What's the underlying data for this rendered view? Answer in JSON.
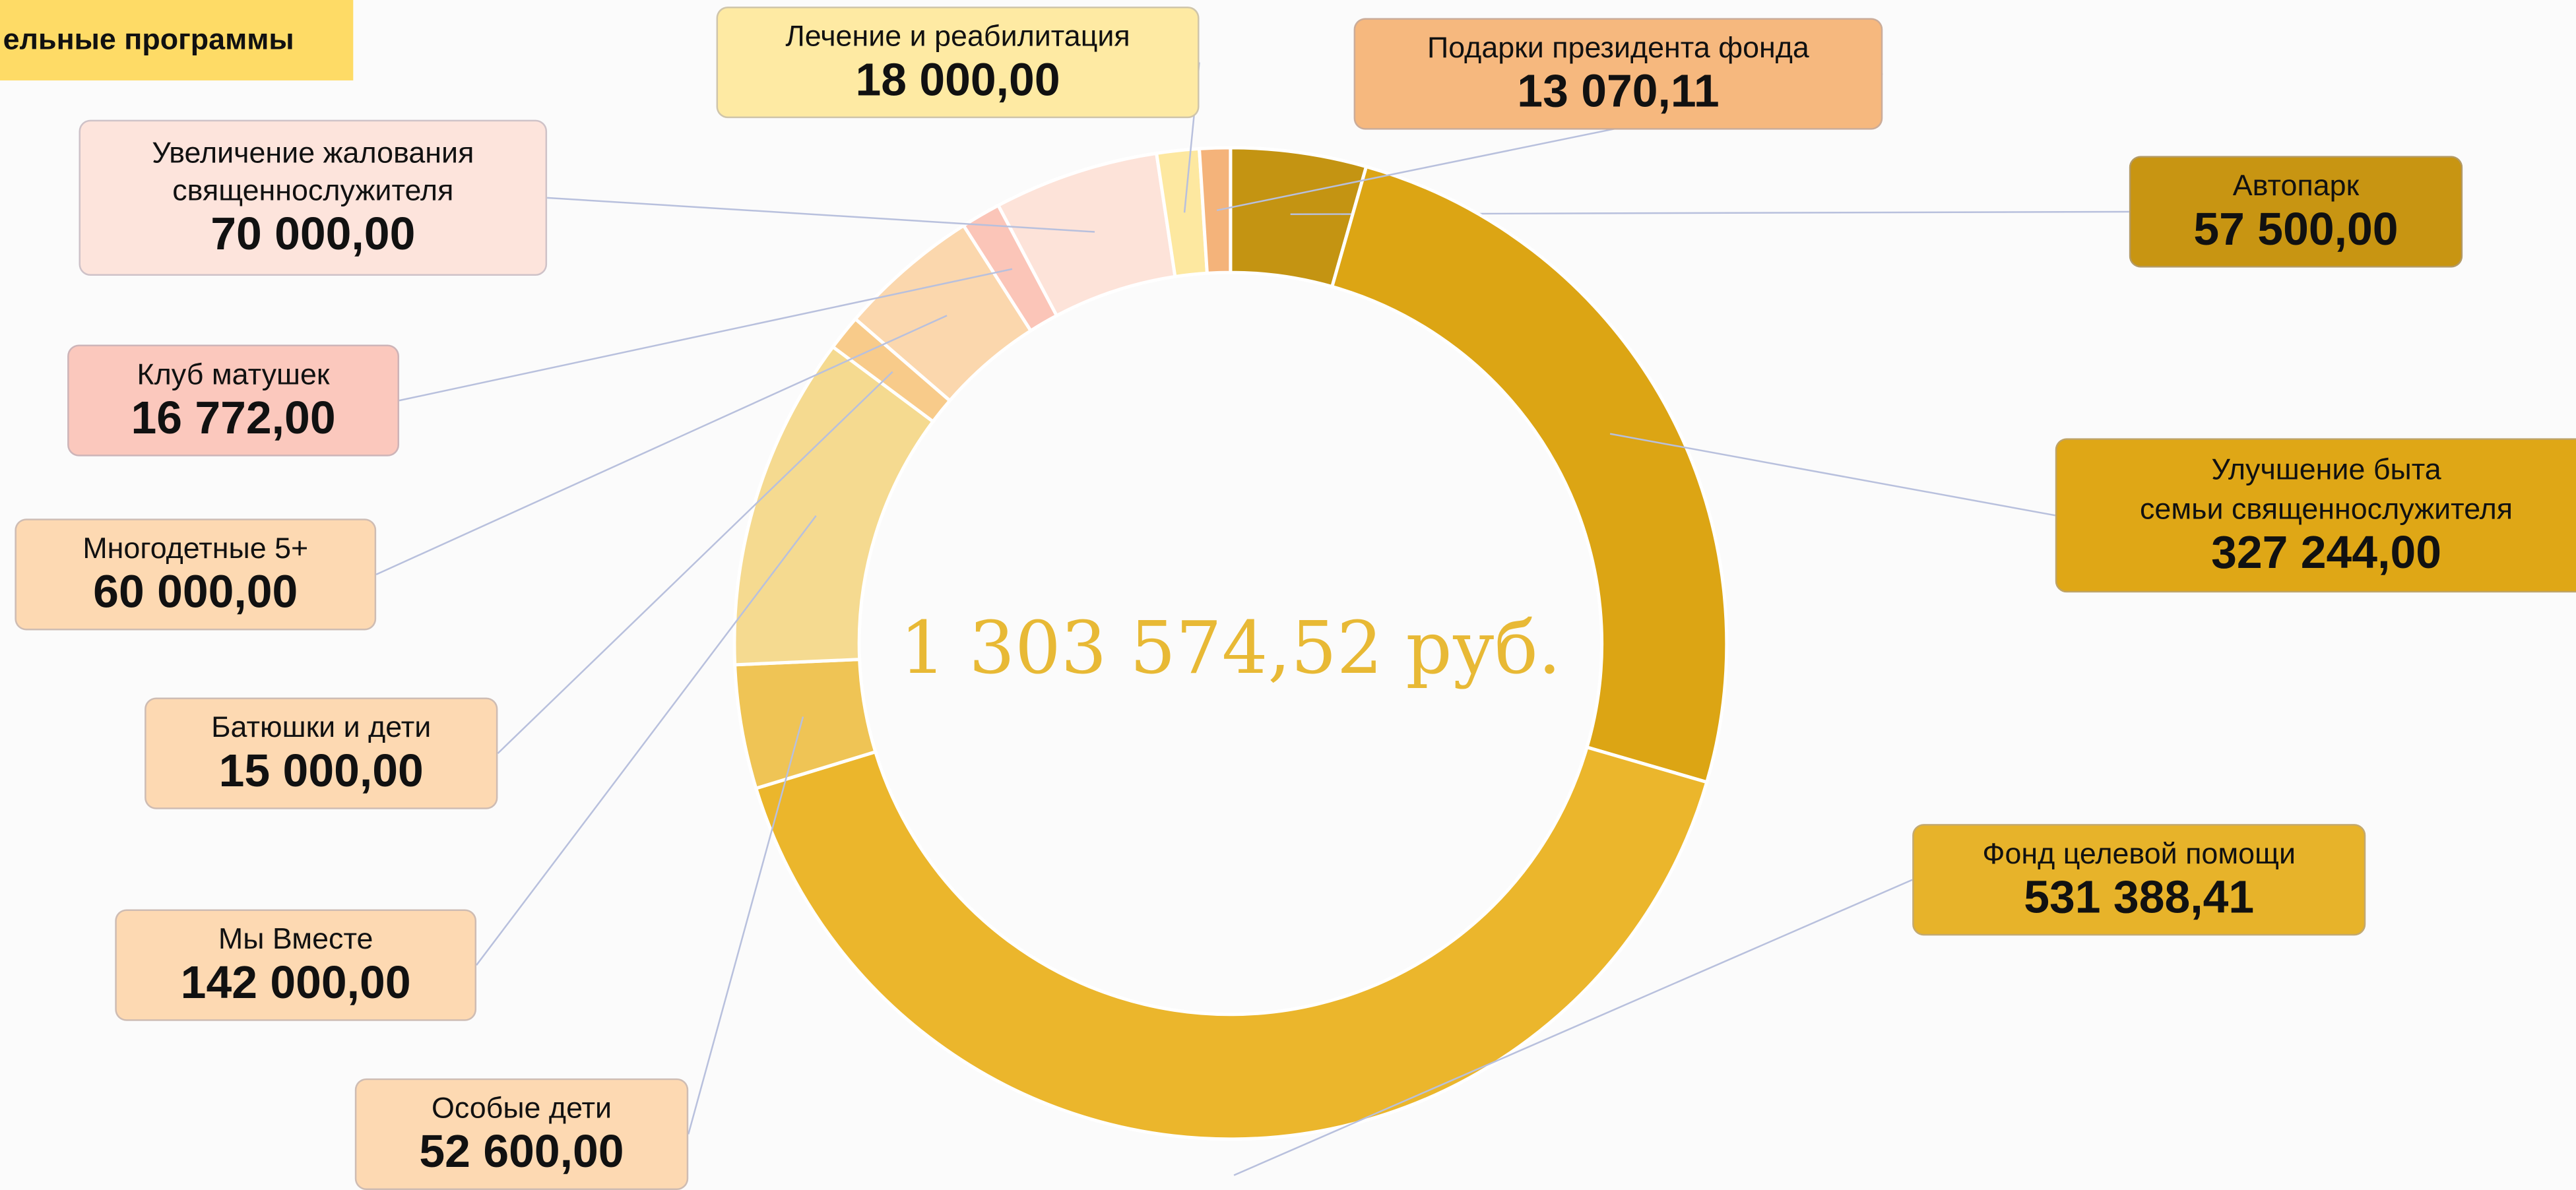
{
  "chart_data": {
    "type": "donut",
    "title": "ельные программы",
    "total_label": "1 303 574,52 руб.",
    "categories": [
      "Автопарк",
      "Улучшение быта\nсемьи священнослужителя",
      "Фонд целевой помощи",
      "Особые дети",
      "Мы Вместе",
      "Батюшки и дети",
      "Многодетные 5+",
      "Клуб матушек",
      "Увеличение жалования\nсвященнослужителя",
      "Лечение и реабилитация",
      "Подарки президента фонда"
    ],
    "values": [
      57500,
      327244,
      531388.41,
      52600,
      142000,
      15000,
      60000,
      16772,
      70000,
      18000,
      13070.11
    ],
    "value_labels": [
      "57 500,00",
      "327 244,00",
      "531 388,41",
      "52 600,00",
      "142 000,00",
      "15 000,00",
      "60 000,00",
      "16 772,00",
      "70 000,00",
      "18 000,00",
      "13 070,11"
    ],
    "colors": [
      "#c49412",
      "#dca514",
      "#ebb62c",
      "#efc455",
      "#f5da90",
      "#f8cb8a",
      "#fbd7ad",
      "#fbc5b8",
      "#fde3d9",
      "#fde8a0",
      "#f4b37a"
    ]
  }
}
